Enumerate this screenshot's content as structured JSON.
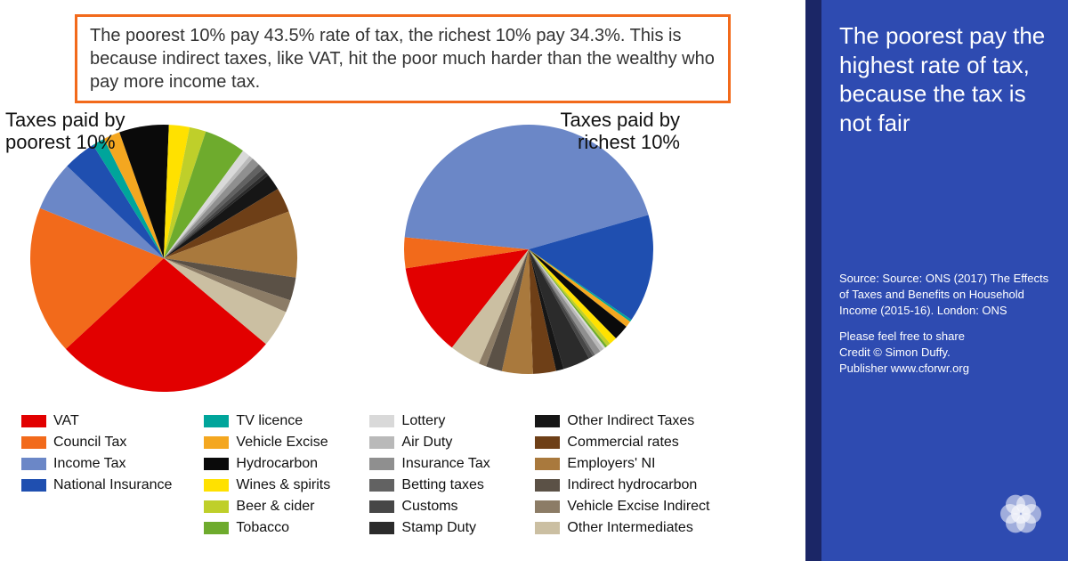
{
  "callout": "The poorest 10% pay 43.5% rate of tax, the richest 10% pay 34.3%. This is because indirect taxes, like VAT, hit the poor much harder than the wealthy who pay more income tax.",
  "sidebar": {
    "title": "The poorest pay the highest rate of tax, because the tax is not fair",
    "source": "Source: Source: ONS (2017) The Effects of Taxes and Benefits on Household Income (2015-16). London: ONS",
    "share": "Please feel free to share",
    "credit": "Credit © Simon Duffy.",
    "publisher": "Publisher www.cforwr.org",
    "bg_color": "#2e4bb1",
    "stripe_color": "#1b2666"
  },
  "callout_border": "#f26a1b",
  "categories": [
    {
      "label": "VAT",
      "color": "#e20000"
    },
    {
      "label": "Council Tax",
      "color": "#f26a1b"
    },
    {
      "label": "Income Tax",
      "color": "#6b87c7"
    },
    {
      "label": "National Insurance",
      "color": "#1f4fb0"
    },
    {
      "label": "TV licence",
      "color": "#00a59b"
    },
    {
      "label": "Vehicle Excise",
      "color": "#f4a720"
    },
    {
      "label": "Hydrocarbon",
      "color": "#0a0a0a"
    },
    {
      "label": "Wines & spirits",
      "color": "#ffe100"
    },
    {
      "label": "Beer & cider",
      "color": "#bfcf2a"
    },
    {
      "label": "Tobacco",
      "color": "#6eab2d"
    },
    {
      "label": "Lottery",
      "color": "#d9d9d9"
    },
    {
      "label": "Air Duty",
      "color": "#b9b9b9"
    },
    {
      "label": "Insurance Tax",
      "color": "#8f8f8f"
    },
    {
      "label": "Betting taxes",
      "color": "#626262"
    },
    {
      "label": "Customs",
      "color": "#474747"
    },
    {
      "label": "Stamp Duty",
      "color": "#2b2b2b"
    },
    {
      "label": "Other Indirect Taxes",
      "color": "#161616"
    },
    {
      "label": "Commercial rates",
      "color": "#6e3f17"
    },
    {
      "label": "Employers' NI",
      "color": "#a9793d"
    },
    {
      "label": "Indirect hydrocarbon",
      "color": "#5b5146"
    },
    {
      "label": "Vehicle Excise Indirect",
      "color": "#8c7c66"
    },
    {
      "label": "Other Intermediates",
      "color": "#cbbfa2"
    }
  ],
  "charts": {
    "poorest": {
      "title": "Taxes paid by poorest 10%",
      "radius": 150,
      "start_angle_deg": 40,
      "values": [
        27,
        18,
        6,
        4,
        1.5,
        2,
        6,
        2.5,
        2,
        5,
        1,
        0.5,
        1,
        0.7,
        0.6,
        0.4,
        2,
        3,
        8,
        2.8,
        1.5,
        4.5
      ]
    },
    "richest": {
      "title": "Taxes paid by richest 10%",
      "radius": 140,
      "start_angle_deg": 128,
      "values": [
        12,
        4,
        44,
        14,
        0.3,
        0.8,
        2,
        1,
        0.5,
        0.3,
        0.3,
        0.5,
        0.8,
        0.3,
        0.6,
        3.5,
        1,
        3,
        4,
        2.1,
        1,
        4
      ]
    }
  },
  "legend_columns": [
    [
      0,
      1,
      2,
      3
    ],
    [
      4,
      5,
      6,
      7,
      8,
      9
    ],
    [
      10,
      11,
      12,
      13,
      14,
      15
    ],
    [
      16,
      17,
      18,
      19,
      20,
      21
    ]
  ],
  "typography": {
    "callout_fontsize": 20,
    "chart_title_fontsize": 22,
    "legend_fontsize": 16,
    "sidebar_title_fontsize": 26,
    "sidebar_small_fontsize": 13
  }
}
